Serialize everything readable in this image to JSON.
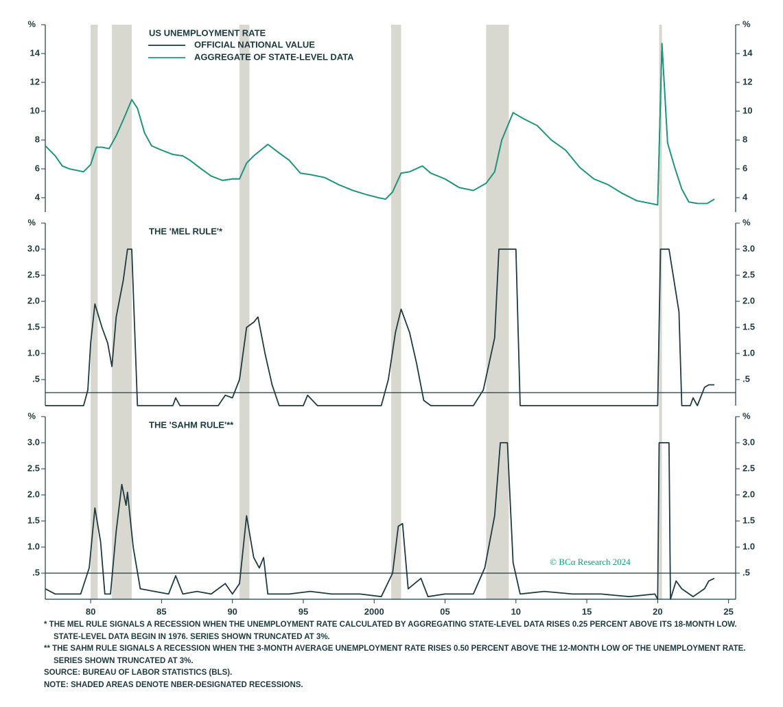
{
  "recessions": [
    [
      1980.0,
      1980.5
    ],
    [
      1981.5,
      1982.9
    ],
    [
      1990.5,
      1991.2
    ],
    [
      2001.2,
      2001.9
    ],
    [
      2007.9,
      2009.5
    ],
    [
      2020.1,
      2020.3
    ]
  ],
  "chart_data": [
    {
      "type": "line",
      "title": "US UNEMPLOYMENT RATE",
      "y_unit": "%",
      "ylim": [
        3,
        16
      ],
      "yticks": [
        4,
        6,
        8,
        10,
        12,
        14
      ],
      "x": [
        1976.8,
        1977.5,
        1978,
        1978.5,
        1979,
        1979.5,
        1980,
        1980.4,
        1980.8,
        1981.3,
        1981.8,
        1982.3,
        1982.9,
        1983.3,
        1983.8,
        1984.3,
        1985,
        1985.8,
        1986.5,
        1987,
        1987.8,
        1988.5,
        1989.3,
        1990,
        1990.5,
        1991,
        1991.5,
        1992.5,
        1993.3,
        1994,
        1994.8,
        1995.5,
        1996.5,
        1997.5,
        1998.5,
        1999.5,
        2000.3,
        2000.8,
        2001.3,
        2001.9,
        2002.5,
        2003.4,
        2004,
        2005,
        2006,
        2007,
        2007.9,
        2008.5,
        2009,
        2009.8,
        2010.5,
        2011.5,
        2012.5,
        2013.5,
        2014.5,
        2015.5,
        2016.5,
        2017.5,
        2018.5,
        2019.5,
        2020.0,
        2020.3,
        2020.7,
        2021.2,
        2021.7,
        2022.2,
        2022.8,
        2023.5,
        2024.0
      ],
      "series": [
        {
          "name": "OFFICIAL NATIONAL VALUE",
          "color": "#1d3a3f",
          "values": [
            7.6,
            6.9,
            6.2,
            6.0,
            5.9,
            5.8,
            6.3,
            7.5,
            7.5,
            7.4,
            8.3,
            9.4,
            10.8,
            10.2,
            8.5,
            7.6,
            7.3,
            7.0,
            6.9,
            6.6,
            6.0,
            5.5,
            5.2,
            5.3,
            5.3,
            6.4,
            6.9,
            7.7,
            7.1,
            6.6,
            5.7,
            5.6,
            5.4,
            4.9,
            4.5,
            4.2,
            4.0,
            3.9,
            4.4,
            5.7,
            5.8,
            6.2,
            5.7,
            5.3,
            4.7,
            4.5,
            5.0,
            5.8,
            8.0,
            9.9,
            9.5,
            9.0,
            8.0,
            7.3,
            6.1,
            5.3,
            4.9,
            4.3,
            3.8,
            3.6,
            3.5,
            14.7,
            7.8,
            6.1,
            4.6,
            3.7,
            3.6,
            3.6,
            3.9
          ]
        },
        {
          "name": "AGGREGATE OF STATE-LEVEL DATA",
          "color": "#1a9a7f",
          "values": [
            7.6,
            6.9,
            6.2,
            6.0,
            5.9,
            5.8,
            6.3,
            7.5,
            7.5,
            7.4,
            8.3,
            9.4,
            10.8,
            10.2,
            8.5,
            7.6,
            7.3,
            7.0,
            6.9,
            6.6,
            6.0,
            5.5,
            5.2,
            5.3,
            5.3,
            6.4,
            6.9,
            7.7,
            7.1,
            6.6,
            5.7,
            5.6,
            5.4,
            4.9,
            4.5,
            4.2,
            4.0,
            3.9,
            4.4,
            5.7,
            5.8,
            6.2,
            5.7,
            5.3,
            4.7,
            4.5,
            5.0,
            5.8,
            8.0,
            9.9,
            9.5,
            9.0,
            8.0,
            7.3,
            6.1,
            5.3,
            4.9,
            4.3,
            3.8,
            3.6,
            3.5,
            14.7,
            7.8,
            6.1,
            4.6,
            3.7,
            3.6,
            3.6,
            3.9
          ]
        }
      ]
    },
    {
      "type": "line",
      "title": "THE 'MEL RULE'*",
      "y_unit": "%",
      "ylim": [
        0,
        3.5
      ],
      "threshold": 0.25,
      "yticks": [
        {
          "value": 0.5,
          "label": ".5"
        },
        {
          "value": 1,
          "label": "1.0"
        },
        1.5,
        {
          "value": 2,
          "label": "2.0"
        },
        2.5,
        {
          "value": 3,
          "label": "3.0"
        }
      ],
      "x": [
        1976.8,
        1979.5,
        1979.8,
        1980.0,
        1980.3,
        1980.8,
        1981.2,
        1981.5,
        1981.8,
        1982.3,
        1982.6,
        1982.9,
        1983.3,
        1985.8,
        1986,
        1986.3,
        1989,
        1989.5,
        1990,
        1990.5,
        1991,
        1991.5,
        1991.8,
        1992.3,
        1992.8,
        1993.3,
        1995,
        1995.3,
        1996,
        2000.5,
        2001.0,
        2001.5,
        2001.9,
        2002.5,
        2003.0,
        2003.5,
        2004,
        2007,
        2007.7,
        2008.5,
        2008.8,
        2010.0,
        2010.3,
        2019.5,
        2020.0,
        2020.2,
        2020.8,
        2021.5,
        2021.7,
        2022.3,
        2022.5,
        2022.8,
        2023.3,
        2023.6,
        2024.0
      ],
      "series": [
        {
          "name": "MEL RULE",
          "color": "#1d3a3f",
          "values": [
            0,
            0,
            0.3,
            1.2,
            1.95,
            1.5,
            1.2,
            0.75,
            1.7,
            2.4,
            3.0,
            3.0,
            0,
            0,
            0.15,
            0,
            0,
            0.2,
            0.15,
            0.5,
            1.5,
            1.6,
            1.7,
            1.0,
            0.4,
            0,
            0,
            0.2,
            0,
            0,
            0.5,
            1.4,
            1.85,
            1.4,
            0.8,
            0.1,
            0,
            0,
            0.3,
            1.3,
            3.0,
            3.0,
            0,
            0,
            0,
            3.0,
            3.0,
            1.8,
            0,
            0,
            0.15,
            0,
            0.35,
            0.4,
            0.4
          ]
        }
      ]
    },
    {
      "type": "line",
      "title": "THE 'SAHM RULE'**",
      "y_unit": "%",
      "ylim": [
        0,
        3.5
      ],
      "threshold": 0.5,
      "yticks": [
        {
          "value": 0.5,
          "label": ".5"
        },
        {
          "value": 1,
          "label": "1.0"
        },
        1.5,
        {
          "value": 2,
          "label": "2.0"
        },
        2.5,
        {
          "value": 3,
          "label": "3.0"
        }
      ],
      "xlim": [
        1976.8,
        2025.5
      ],
      "xticks": [
        {
          "value": 1980,
          "label": "80"
        },
        {
          "value": 1985,
          "label": "85"
        },
        {
          "value": 1990,
          "label": "90"
        },
        {
          "value": 1995,
          "label": "95"
        },
        2000,
        {
          "value": 2005,
          "label": "05"
        },
        {
          "value": 2010,
          "label": "10"
        },
        {
          "value": 2015,
          "label": "15"
        },
        {
          "value": 2020,
          "label": "20"
        },
        {
          "value": 2025,
          "label": "25"
        }
      ],
      "annotation": "© BCα Research 2024",
      "x": [
        1976.8,
        1977.5,
        1978.5,
        1979.3,
        1979.9,
        1980.3,
        1980.7,
        1981.0,
        1981.4,
        1981.8,
        1982.2,
        1982.5,
        1982.6,
        1983.0,
        1983.5,
        1984.5,
        1985.5,
        1986.0,
        1986.5,
        1987.5,
        1988.5,
        1989.5,
        1990.0,
        1990.5,
        1991.0,
        1991.5,
        1991.9,
        1992.2,
        1992.5,
        1994,
        1995.5,
        1997,
        1999,
        2000.5,
        2001.3,
        2001.7,
        2002.0,
        2002.4,
        2003.3,
        2003.8,
        2005,
        2007.0,
        2007.8,
        2008.5,
        2008.9,
        2009.4,
        2009.8,
        2010.3,
        2012,
        2014,
        2016,
        2018,
        2019.8,
        2020.0,
        2020.1,
        2020.8,
        2020.9,
        2021.3,
        2021.7,
        2022.5,
        2023.3,
        2023.6,
        2024.0
      ],
      "series": [
        {
          "name": "SAHM RULE",
          "color": "#1d3a3f",
          "values": [
            0.2,
            0.1,
            0.1,
            0.1,
            0.6,
            1.75,
            1.1,
            0.1,
            0.1,
            1.3,
            2.2,
            1.8,
            2.05,
            1.0,
            0.2,
            0.15,
            0.1,
            0.45,
            0.1,
            0.15,
            0.1,
            0.3,
            0.1,
            0.3,
            1.6,
            0.8,
            0.6,
            0.8,
            0.1,
            0.1,
            0.15,
            0.1,
            0.1,
            0.05,
            0.5,
            1.4,
            1.45,
            0.2,
            0.4,
            0.05,
            0.1,
            0.1,
            0.6,
            1.6,
            3.0,
            3.0,
            0.7,
            0.1,
            0.15,
            0.1,
            0.1,
            0.05,
            0.1,
            0,
            3.0,
            3.0,
            0,
            0.35,
            0.2,
            0.05,
            0.2,
            0.35,
            0.4
          ]
        }
      ]
    }
  ],
  "notes": [
    "* THE MEL RULE SIGNALS A RECESSION WHEN THE UNEMPLOYMENT RATE CALCULATED BY AGGREGATING STATE-LEVEL DATA RISES 0.25 PERCENT ABOVE ITS 18-MONTH LOW. STATE-LEVEL DATA BEGIN IN 1976. SERIES SHOWN TRUNCATED AT 3%.",
    "** THE SAHM RULE SIGNALS A RECESSION WHEN THE 3-MONTH AVERAGE UNEMPLOYMENT RATE RISES 0.50 PERCENT ABOVE THE 12-MONTH LOW OF THE UNEMPLOYMENT RATE. SERIES SHOWN TRUNCATED AT 3%.",
    "SOURCE: BUREAU OF LABOR STATISTICS (BLS).",
    "NOTE: SHADED AREAS DENOTE NBER-DESIGNATED RECESSIONS."
  ]
}
